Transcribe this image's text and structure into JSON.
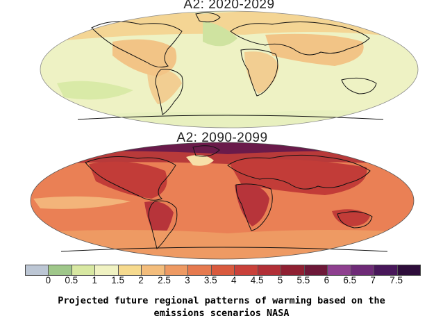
{
  "maps": [
    {
      "title": "A2: 2020-2029"
    },
    {
      "title": "A2: 2090-2099"
    }
  ],
  "legend": {
    "ticks": [
      "0",
      "0.5",
      "1",
      "1.5",
      "2",
      "2.5",
      "3",
      "3.5",
      "4",
      "4.5",
      "5",
      "5.5",
      "6",
      "6.5",
      "7",
      "7.5"
    ],
    "colors": [
      "#bcc6d4",
      "#9fc78a",
      "#d8e8a2",
      "#f0f2c2",
      "#f6da8e",
      "#f3bd7c",
      "#ee9a63",
      "#e67a4f",
      "#d95a3e",
      "#c9413a",
      "#b22f36",
      "#8f2032",
      "#6d1838",
      "#8e3f8f",
      "#6e2a77",
      "#48175a",
      "#2e0d3b"
    ]
  },
  "caption": {
    "line1": "Projected future regional patterns of warming based on the",
    "line2": "emissions scenarios NASA"
  }
}
